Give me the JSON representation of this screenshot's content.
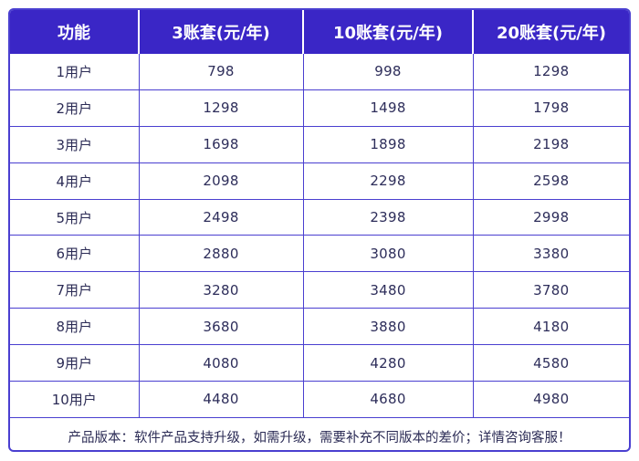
{
  "table": {
    "headers": [
      "功能",
      "3账套(元/年)",
      "10账套(元/年)",
      "20账套(元/年)"
    ],
    "rows": [
      {
        "label": "1用户",
        "values": [
          "798",
          "998",
          "1298"
        ]
      },
      {
        "label": "2用户",
        "values": [
          "1298",
          "1498",
          "1798"
        ]
      },
      {
        "label": "3用户",
        "values": [
          "1698",
          "1898",
          "2198"
        ]
      },
      {
        "label": "4用户",
        "values": [
          "2098",
          "2298",
          "2598"
        ]
      },
      {
        "label": "5用户",
        "values": [
          "2498",
          "2398",
          "2998"
        ]
      },
      {
        "label": "6用户",
        "values": [
          "2880",
          "3080",
          "3380"
        ]
      },
      {
        "label": "7用户",
        "values": [
          "3280",
          "3480",
          "3780"
        ]
      },
      {
        "label": "8用户",
        "values": [
          "3680",
          "3880",
          "4180"
        ]
      },
      {
        "label": "9用户",
        "values": [
          "4080",
          "4280",
          "4580"
        ]
      },
      {
        "label": "10用户",
        "values": [
          "4480",
          "4680",
          "4980"
        ]
      }
    ],
    "footnote": "产品版本：软件产品支持升级，如需升级，需要补充不同版本的差价；详情咨询客服！"
  },
  "colors": {
    "header_bg": "#3a26c6",
    "border": "#4a3fd0",
    "text": "#2b2b55"
  }
}
